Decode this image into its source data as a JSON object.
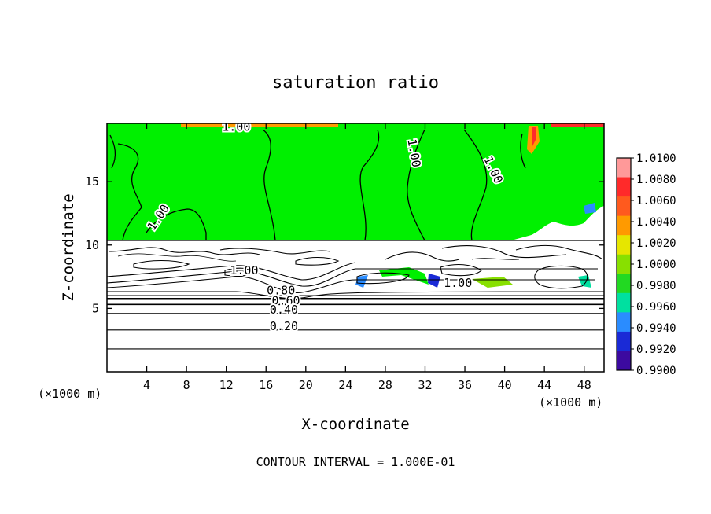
{
  "chart_data": {
    "type": "heatmap",
    "title": "saturation ratio",
    "xlabel": "X-coordinate",
    "ylabel": "Z-coordinate",
    "x_unit_left": "(×1000 m)",
    "x_unit_right": "(×1000 m)",
    "footer": "CONTOUR INTERVAL = 1.000E-01",
    "xlim": [
      0,
      50
    ],
    "ylim": [
      0,
      19.6
    ],
    "xticks": [
      4,
      8,
      12,
      16,
      20,
      24,
      28,
      32,
      36,
      40,
      44,
      48
    ],
    "yticks": [
      5,
      10,
      15
    ],
    "contour_labels": [
      {
        "text": "1.00",
        "x": 13,
        "y": 19.0
      },
      {
        "text": "1.00",
        "x": 5.5,
        "y": 12.0
      },
      {
        "text": "1.00",
        "x": 30.5,
        "y": 17.2
      },
      {
        "text": "1.00",
        "x": 38.5,
        "y": 15.8
      },
      {
        "text": "1.00",
        "x": 13.8,
        "y": 7.7
      },
      {
        "text": "1.00",
        "x": 35.3,
        "y": 6.7
      },
      {
        "text": "0.80",
        "x": 17.5,
        "y": 6.1
      },
      {
        "text": "0.60",
        "x": 18.0,
        "y": 5.3
      },
      {
        "text": "0.40",
        "x": 17.8,
        "y": 4.6
      },
      {
        "text": "0.20",
        "x": 17.8,
        "y": 3.3
      }
    ],
    "horizontal_contours_y": [
      1.8,
      3.3,
      4.0,
      4.6,
      5.3,
      5.8
    ],
    "colorbar": {
      "levels": [
        "1.0100",
        "1.0080",
        "1.0060",
        "1.0040",
        "1.0020",
        "1.0000",
        "0.9980",
        "0.9960",
        "0.9940",
        "0.9920",
        "0.9900"
      ],
      "colors": [
        "#ff9999",
        "#ff2a2a",
        "#ff5a1e",
        "#ff9a00",
        "#e6e600",
        "#88e000",
        "#22d922",
        "#00e0a0",
        "#2a8cff",
        "#1a2ad6",
        "#3c0aa0"
      ]
    },
    "regions": {
      "saturated": "#00f000",
      "subsaturated": "#ffffff"
    }
  }
}
